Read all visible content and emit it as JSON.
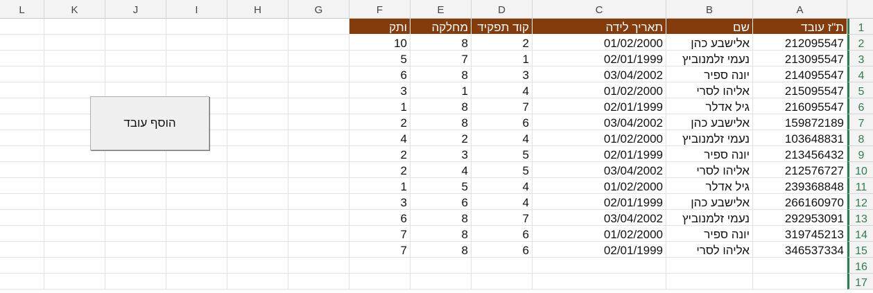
{
  "column_letters": [
    "L",
    "K",
    "J",
    "I",
    "H",
    "G",
    "F",
    "E",
    "D",
    "C",
    "B",
    "A"
  ],
  "row_numbers": [
    "1",
    "2",
    "3",
    "4",
    "5",
    "6",
    "7",
    "8",
    "9",
    "10",
    "11",
    "12",
    "13",
    "14",
    "15",
    "16",
    "17"
  ],
  "table": {
    "headers": [
      "ת\"ז עובד",
      "שם",
      "תאריך לידה",
      "קוד תפקיד",
      "מחלקה",
      "ותק"
    ],
    "rows": [
      [
        "212095547",
        "אלישבע כהן",
        "01/02/2000",
        "2",
        "8",
        "10"
      ],
      [
        "213095547",
        "נעמי זלמנוביץ",
        "02/01/1999",
        "1",
        "7",
        "5"
      ],
      [
        "214095547",
        "יונה ספיר",
        "03/04/2002",
        "3",
        "8",
        "6"
      ],
      [
        "215095547",
        "אליהו לסרי",
        "01/02/2000",
        "4",
        "1",
        "3"
      ],
      [
        "216095547",
        "גיל אדלר",
        "02/01/1999",
        "7",
        "8",
        "1"
      ],
      [
        "159872189",
        "אלישבע כהן",
        "03/04/2002",
        "6",
        "8",
        "2"
      ],
      [
        "103648831",
        "נעמי זלמנוביץ",
        "01/02/2000",
        "4",
        "2",
        "4"
      ],
      [
        "213456432",
        "יונה ספיר",
        "02/01/1999",
        "5",
        "3",
        "2"
      ],
      [
        "212576727",
        "אליהו לסרי",
        "03/04/2002",
        "5",
        "4",
        "2"
      ],
      [
        "239368848",
        "גיל אדלר",
        "01/02/2000",
        "4",
        "5",
        "1"
      ],
      [
        "266160970",
        "אלישבע כהן",
        "02/01/1999",
        "4",
        "6",
        "3"
      ],
      [
        "292953091",
        "נעמי זלמנוביץ",
        "03/04/2002",
        "7",
        "8",
        "6"
      ],
      [
        "319745213",
        "יונה ספיר",
        "01/02/2000",
        "6",
        "8",
        "7"
      ],
      [
        "346537334",
        "אליהו לסרי",
        "02/01/1999",
        "6",
        "8",
        "7"
      ]
    ]
  },
  "add_employee_button": "הוסף עובד",
  "colors": {
    "header_fill": "#843c0c",
    "header_text": "#ffffff",
    "accent_green": "#2e7d4f"
  }
}
